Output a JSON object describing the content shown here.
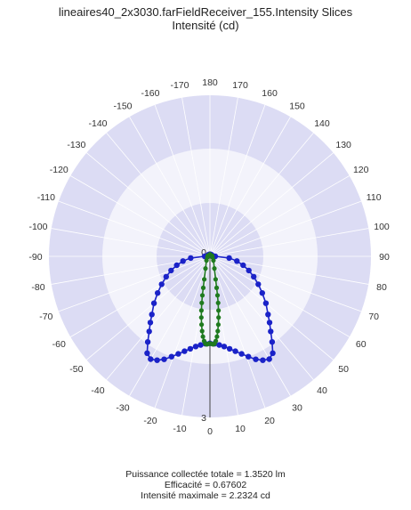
{
  "title": {
    "line1": "lineaires40_2x3030.farFieldReceiver_155.Intensity Slices",
    "line2": "Intensité (cd)"
  },
  "stats": {
    "power": "Puissance collectée totale = 1.3520  lm",
    "efficiency": "Efficacité = 0.67602",
    "max_intensity": "Intensité maximale = 2.2324  cd"
  },
  "chart_data": {
    "type": "polar",
    "title": "lineaires40_2x3030.farFieldReceiver_155.Intensity Slices",
    "subtitle": "Intensité (cd)",
    "angle_ticks": [
      180,
      170,
      160,
      150,
      140,
      130,
      120,
      110,
      100,
      90,
      80,
      70,
      60,
      50,
      40,
      30,
      20,
      10,
      0,
      -10,
      -20,
      -30,
      -40,
      -50,
      -60,
      -70,
      -80,
      -90,
      -100,
      -110,
      -120,
      -130,
      -140,
      -150,
      -160,
      -170
    ],
    "radial_tick_labels": [
      {
        "value": 0,
        "label": "0"
      },
      {
        "value": 3,
        "label": "3"
      }
    ],
    "radial_range": [
      0,
      3
    ],
    "angle_zero_direction": "bottom",
    "grid": true,
    "colors": {
      "ring_shade": "#dcdcf4",
      "ring_light": "#f3f3fb",
      "grid": "#ffffff",
      "series_blue": "#1a22c8",
      "series_green": "#1f7a1f"
    },
    "series": [
      {
        "color": "#1a22c8",
        "points": [
          {
            "angle": 0,
            "r": 1.62
          },
          {
            "angle": 3,
            "r": 1.63
          },
          {
            "angle": 6,
            "r": 1.66
          },
          {
            "angle": 9,
            "r": 1.7
          },
          {
            "angle": 12,
            "r": 1.76
          },
          {
            "angle": 15,
            "r": 1.83
          },
          {
            "angle": 18,
            "r": 1.91
          },
          {
            "angle": 21,
            "r": 2.0
          },
          {
            "angle": 24,
            "r": 2.1
          },
          {
            "angle": 27,
            "r": 2.17
          },
          {
            "angle": 30,
            "r": 2.21
          },
          {
            "angle": 33,
            "r": 2.15
          },
          {
            "angle": 36,
            "r": 1.97
          },
          {
            "angle": 39,
            "r": 1.8
          },
          {
            "angle": 42,
            "r": 1.66
          },
          {
            "angle": 45,
            "r": 1.53
          },
          {
            "angle": 50,
            "r": 1.36
          },
          {
            "angle": 55,
            "r": 1.19
          },
          {
            "angle": 60,
            "r": 1.04
          },
          {
            "angle": 65,
            "r": 0.9
          },
          {
            "angle": 70,
            "r": 0.77
          },
          {
            "angle": 75,
            "r": 0.64
          },
          {
            "angle": 80,
            "r": 0.51
          },
          {
            "angle": 85,
            "r": 0.36
          },
          {
            "angle": 90,
            "r": 0.1
          },
          {
            "angle": 95,
            "r": 0.06
          },
          {
            "angle": 100,
            "r": 0.05
          },
          {
            "angle": 110,
            "r": 0.04
          },
          {
            "angle": 130,
            "r": 0.04
          },
          {
            "angle": 150,
            "r": 0.04
          },
          {
            "angle": 180,
            "r": 0.04
          },
          {
            "angle": -150,
            "r": 0.04
          },
          {
            "angle": -130,
            "r": 0.04
          },
          {
            "angle": -110,
            "r": 0.04
          },
          {
            "angle": -100,
            "r": 0.05
          },
          {
            "angle": -95,
            "r": 0.06
          },
          {
            "angle": -90,
            "r": 0.1
          },
          {
            "angle": -85,
            "r": 0.36
          },
          {
            "angle": -80,
            "r": 0.51
          },
          {
            "angle": -75,
            "r": 0.64
          },
          {
            "angle": -70,
            "r": 0.77
          },
          {
            "angle": -65,
            "r": 0.9
          },
          {
            "angle": -60,
            "r": 1.04
          },
          {
            "angle": -55,
            "r": 1.19
          },
          {
            "angle": -50,
            "r": 1.36
          },
          {
            "angle": -45,
            "r": 1.53
          },
          {
            "angle": -42,
            "r": 1.66
          },
          {
            "angle": -39,
            "r": 1.8
          },
          {
            "angle": -36,
            "r": 1.97
          },
          {
            "angle": -33,
            "r": 2.15
          },
          {
            "angle": -30,
            "r": 2.21
          },
          {
            "angle": -27,
            "r": 2.17
          },
          {
            "angle": -24,
            "r": 2.1
          },
          {
            "angle": -21,
            "r": 2.0
          },
          {
            "angle": -18,
            "r": 1.91
          },
          {
            "angle": -15,
            "r": 1.83
          },
          {
            "angle": -12,
            "r": 1.76
          },
          {
            "angle": -9,
            "r": 1.7
          },
          {
            "angle": -6,
            "r": 1.66
          },
          {
            "angle": -3,
            "r": 1.63
          }
        ]
      },
      {
        "color": "#1f7a1f",
        "points": [
          {
            "angle": 0,
            "r": 1.62
          },
          {
            "angle": 1,
            "r": 1.63
          },
          {
            "angle": 2,
            "r": 1.64
          },
          {
            "angle": 3,
            "r": 1.63
          },
          {
            "angle": 4,
            "r": 1.58
          },
          {
            "angle": 5,
            "r": 1.5
          },
          {
            "angle": 6,
            "r": 1.4
          },
          {
            "angle": 7,
            "r": 1.28
          },
          {
            "angle": 8,
            "r": 1.15
          },
          {
            "angle": 9,
            "r": 1.02
          },
          {
            "angle": 10,
            "r": 0.88
          },
          {
            "angle": 11,
            "r": 0.74
          },
          {
            "angle": 12,
            "r": 0.6
          },
          {
            "angle": 14,
            "r": 0.44
          },
          {
            "angle": 20,
            "r": 0.24
          },
          {
            "angle": 40,
            "r": 0.1
          },
          {
            "angle": 70,
            "r": 0.05
          },
          {
            "angle": 110,
            "r": 0.04
          },
          {
            "angle": 180,
            "r": 0.04
          },
          {
            "angle": -110,
            "r": 0.04
          },
          {
            "angle": -70,
            "r": 0.05
          },
          {
            "angle": -40,
            "r": 0.1
          },
          {
            "angle": -20,
            "r": 0.24
          },
          {
            "angle": -14,
            "r": 0.44
          },
          {
            "angle": -12,
            "r": 0.6
          },
          {
            "angle": -11,
            "r": 0.74
          },
          {
            "angle": -10,
            "r": 0.88
          },
          {
            "angle": -9,
            "r": 1.02
          },
          {
            "angle": -8,
            "r": 1.15
          },
          {
            "angle": -7,
            "r": 1.28
          },
          {
            "angle": -6,
            "r": 1.4
          },
          {
            "angle": -5,
            "r": 1.5
          },
          {
            "angle": -4,
            "r": 1.58
          },
          {
            "angle": -3,
            "r": 1.63
          },
          {
            "angle": -2,
            "r": 1.64
          },
          {
            "angle": -1,
            "r": 1.63
          }
        ]
      }
    ]
  }
}
